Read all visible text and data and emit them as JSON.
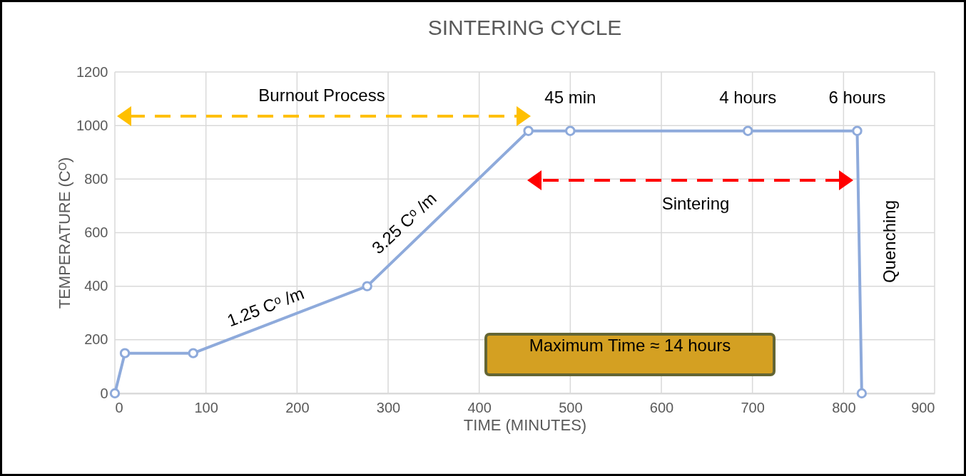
{
  "chart_data": {
    "type": "line",
    "title": "SINTERING CYCLE",
    "xlabel": "TIME (MINUTES)",
    "ylabel": "TEMPERATURE (Cᴼ)",
    "x": [
      0,
      11,
      86,
      277,
      454,
      500,
      695,
      815,
      820
    ],
    "series": [
      {
        "color": "#8eaadb",
        "values": [
          0,
          150,
          150,
          400,
          980,
          980,
          980,
          980,
          0
        ]
      }
    ],
    "xlim": [
      0,
      900
    ],
    "xticks": [
      0,
      100,
      200,
      300,
      400,
      500,
      600,
      700,
      800,
      900
    ],
    "ylim": [
      0,
      1200
    ],
    "yticks": [
      0,
      200,
      400,
      600,
      800,
      1000,
      1200
    ],
    "grid": true,
    "marker": "circle",
    "line_style": "solid",
    "annotations": [
      {
        "text": "45 min",
        "x": 500,
        "y": 980
      },
      {
        "text": "4 hours",
        "x": 695,
        "y": 980
      },
      {
        "text": "6 hours",
        "x": 815,
        "y": 980
      },
      {
        "text": "1.25 Cᵒ /m",
        "x": 172,
        "y": 265
      },
      {
        "text": "3.25 Cᵒ /m",
        "x": 330,
        "y": 590
      },
      "Burnout Process",
      "Sintering",
      "Quenching",
      "Maximum Time ≈ 14 hours"
    ]
  }
}
